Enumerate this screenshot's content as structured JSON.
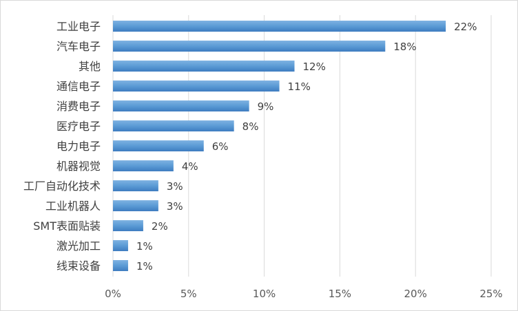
{
  "chart_data": {
    "type": "bar",
    "orientation": "horizontal",
    "title": "",
    "xlabel": "",
    "ylabel": "",
    "categories": [
      "工业电子",
      "汽车电子",
      "其他",
      "通信电子",
      "消费电子",
      "医疗电子",
      "电力电子",
      "机器视觉",
      "工厂自动化技术",
      "工业机器人",
      "SMT表面贴装",
      "激光加工",
      "线束设备"
    ],
    "values": [
      22,
      18,
      12,
      11,
      9,
      8,
      6,
      4,
      3,
      3,
      2,
      1,
      1
    ],
    "value_labels": [
      "22%",
      "18%",
      "12%",
      "11%",
      "9%",
      "8%",
      "6%",
      "4%",
      "3%",
      "3%",
      "2%",
      "1%",
      "1%"
    ],
    "xlim": [
      0,
      25
    ],
    "xticks": [
      0,
      5,
      10,
      15,
      20,
      25
    ],
    "xtick_labels": [
      "0%",
      "5%",
      "10%",
      "15%",
      "20%",
      "25%"
    ],
    "grid": "vertical",
    "legend": "none",
    "colors": {
      "bar_fill": "#5B9BD5",
      "bar_fill_light": "#7FB2E2",
      "bar_fill_dark": "#3E7CC0",
      "grid": "#D9D9D9",
      "text": "#404040",
      "border": "#D9D9D9"
    }
  }
}
